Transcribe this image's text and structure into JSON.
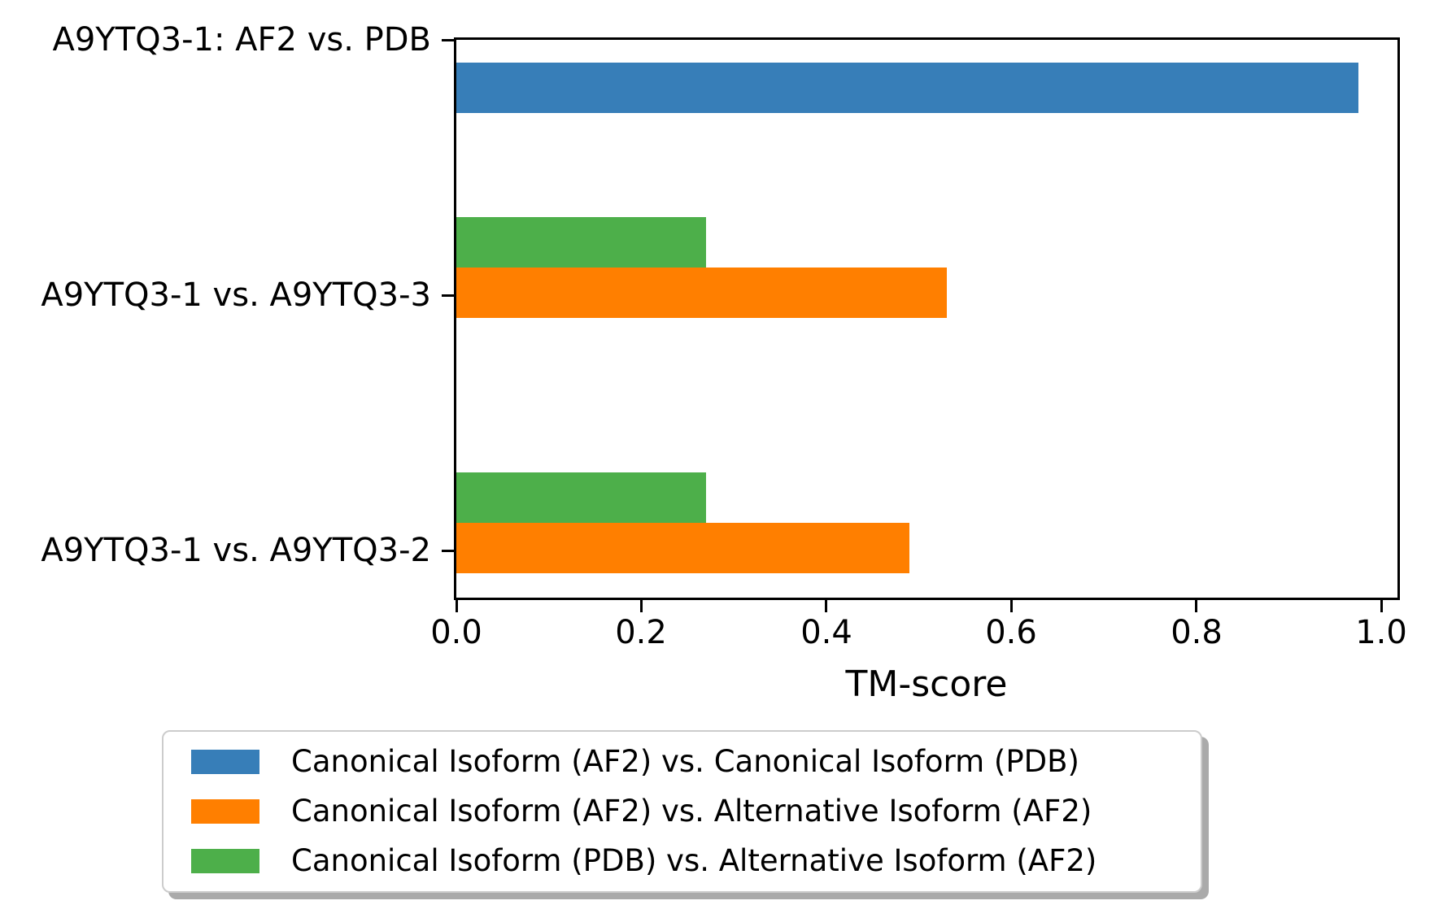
{
  "chart_data": {
    "type": "bar",
    "orientation": "horizontal",
    "title": "",
    "xlabel": "TM-score",
    "ylabel": "",
    "xlim": [
      0.0,
      1.022
    ],
    "grid": false,
    "x_ticks": [
      0.0,
      0.2,
      0.4,
      0.6,
      0.8,
      1.0
    ],
    "x_tick_labels": [
      "0.0",
      "0.2",
      "0.4",
      "0.6",
      "0.8",
      "1.0"
    ],
    "categories": [
      "A9YTQ3-1: AF2 vs. PDB",
      "A9YTQ3-1 vs. A9YTQ3-3",
      "A9YTQ3-1 vs. A9YTQ3-2"
    ],
    "series": [
      {
        "name": "Canonical Isoform (AF2) vs. Canonical Isoform (PDB)",
        "color": "#377eb8",
        "values": [
          0.975,
          null,
          null
        ]
      },
      {
        "name": "Canonical Isoform (AF2) vs. Alternative Isoform (AF2)",
        "color": "#ff7f00",
        "values": [
          null,
          0.53,
          0.49
        ]
      },
      {
        "name": "Canonical Isoform (PDB) vs. Alternative Isoform (AF2)",
        "color": "#4daf4a",
        "values": [
          null,
          0.27,
          0.27
        ]
      }
    ],
    "legend": {
      "position": "lower center",
      "frame": true,
      "shadow": true
    }
  },
  "colors": {
    "background": "#ffffff",
    "spine": "#000000",
    "text": "#000000",
    "legend_border": "#cccccc",
    "legend_shadow": "#aaaaaa"
  }
}
